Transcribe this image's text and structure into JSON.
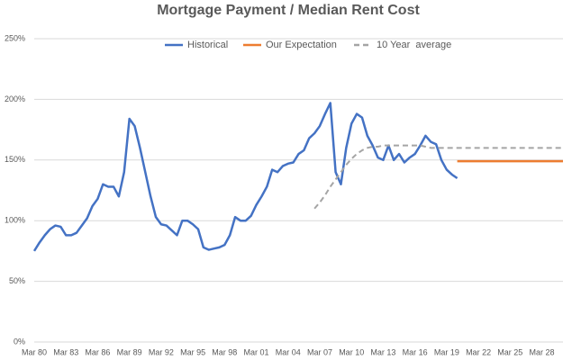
{
  "chart_data": {
    "type": "line",
    "title": "Mortgage Payment / Median Rent Cost",
    "categories": [
      "Mar 80",
      null,
      null,
      null,
      null,
      null,
      "Mar 83",
      null,
      null,
      null,
      null,
      null,
      "Mar 86",
      null,
      null,
      null,
      null,
      null,
      "Mar 89",
      null,
      null,
      null,
      null,
      null,
      "Mar 92",
      null,
      null,
      null,
      null,
      null,
      "Mar 95",
      null,
      null,
      null,
      null,
      null,
      "Mar 98",
      null,
      null,
      null,
      null,
      null,
      "Mar 01",
      null,
      null,
      null,
      null,
      null,
      "Mar 04",
      null,
      null,
      null,
      null,
      null,
      "Mar 07",
      null,
      null,
      null,
      null,
      null,
      "Mar 10",
      null,
      null,
      null,
      null,
      null,
      "Mar 13",
      null,
      null,
      null,
      null,
      null,
      "Mar 16",
      null,
      null,
      null,
      null,
      null,
      "Mar 19",
      null,
      null,
      null,
      null,
      null,
      "Mar 22",
      null,
      null,
      null,
      null,
      null,
      "Mar 25",
      null,
      null,
      null,
      null,
      null,
      "Mar 28",
      null,
      null,
      null,
      null
    ],
    "series": [
      {
        "name": "Historical",
        "color": "#4472c4",
        "style": "solid",
        "values": [
          75,
          82,
          88,
          93,
          96,
          95,
          88,
          88,
          90,
          96,
          102,
          112,
          118,
          130,
          128,
          128,
          120,
          140,
          184,
          178,
          160,
          140,
          120,
          103,
          97,
          96,
          92,
          88,
          100,
          100,
          97,
          93,
          78,
          76,
          77,
          78,
          80,
          88,
          103,
          100,
          100,
          104,
          113,
          120,
          128,
          142,
          140,
          145,
          147,
          148,
          155,
          158,
          168,
          172,
          178,
          188,
          197,
          140,
          130,
          160,
          180,
          188,
          185,
          170,
          162,
          152,
          150,
          162,
          150,
          155,
          148,
          152,
          155,
          162,
          170,
          165,
          163,
          150,
          142,
          138,
          135,
          null,
          null,
          null,
          null,
          null,
          null,
          null,
          null,
          null,
          null,
          null,
          null,
          null,
          null,
          null,
          null,
          null,
          null,
          null,
          null
        ]
      },
      {
        "name": "Our Expectation",
        "color": "#ed7d31",
        "style": "solid",
        "values": [
          null,
          null,
          null,
          null,
          null,
          null,
          null,
          null,
          null,
          null,
          null,
          null,
          null,
          null,
          null,
          null,
          null,
          null,
          null,
          null,
          null,
          null,
          null,
          null,
          null,
          null,
          null,
          null,
          null,
          null,
          null,
          null,
          null,
          null,
          null,
          null,
          null,
          null,
          null,
          null,
          null,
          null,
          null,
          null,
          null,
          null,
          null,
          null,
          null,
          null,
          null,
          null,
          null,
          null,
          null,
          null,
          null,
          null,
          null,
          null,
          null,
          null,
          null,
          null,
          null,
          null,
          null,
          null,
          null,
          null,
          null,
          null,
          null,
          null,
          null,
          null,
          null,
          null,
          null,
          null,
          149,
          149,
          149,
          149,
          149,
          149,
          149,
          149,
          149,
          149,
          149,
          149,
          149,
          149,
          149,
          149,
          149,
          149,
          149,
          149,
          149
        ]
      },
      {
        "name": "10 Year  average",
        "color": "#a5a5a5",
        "style": "dashed",
        "values": [
          null,
          null,
          null,
          null,
          null,
          null,
          null,
          null,
          null,
          null,
          null,
          null,
          null,
          null,
          null,
          null,
          null,
          null,
          null,
          null,
          null,
          null,
          null,
          null,
          null,
          null,
          null,
          null,
          null,
          null,
          null,
          null,
          null,
          null,
          null,
          null,
          null,
          null,
          null,
          null,
          null,
          null,
          null,
          null,
          null,
          null,
          null,
          null,
          null,
          null,
          null,
          null,
          null,
          110,
          115,
          121,
          128,
          134,
          140,
          146,
          151,
          155,
          158,
          160,
          161,
          161,
          162,
          162,
          162,
          162,
          162,
          162,
          162,
          162,
          161,
          160,
          160,
          160,
          160,
          160,
          160,
          160,
          160,
          160,
          160,
          160,
          160,
          160,
          160,
          160,
          160,
          160,
          160,
          160,
          160,
          160,
          160,
          160,
          160,
          160,
          160
        ]
      }
    ],
    "ylim": [
      0,
      250
    ],
    "yticks": [
      {
        "value": 0,
        "label": "0%"
      },
      {
        "value": 50,
        "label": "50%"
      },
      {
        "value": 100,
        "label": "100%"
      },
      {
        "value": 150,
        "label": "150%"
      },
      {
        "value": 200,
        "label": "200%"
      },
      {
        "value": 250,
        "label": "250%"
      }
    ],
    "grid": true,
    "legend": "top"
  }
}
